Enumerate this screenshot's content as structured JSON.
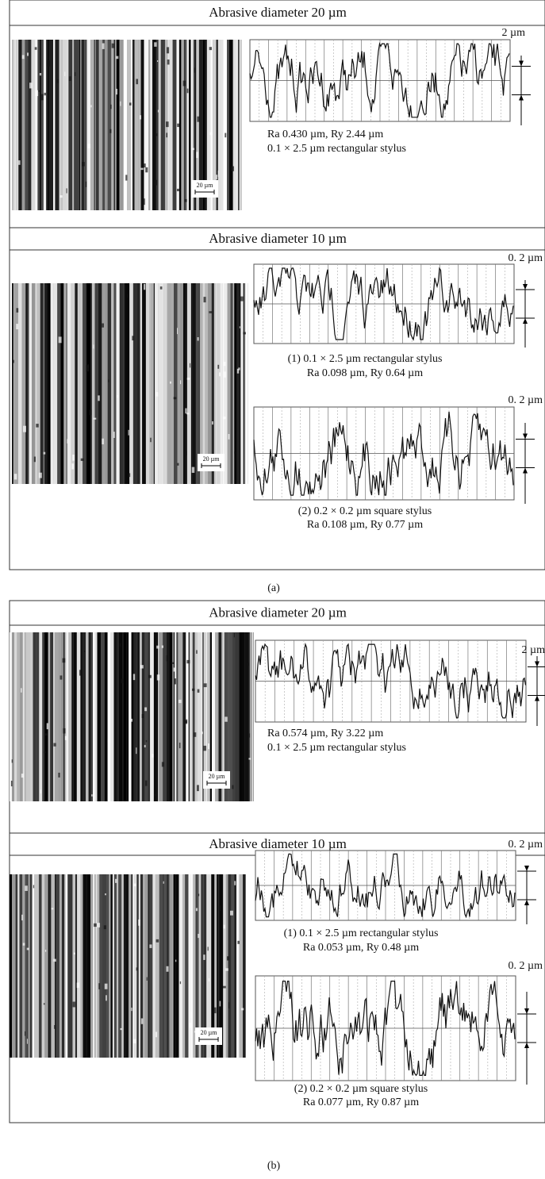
{
  "panels": [
    {
      "label": "(a)",
      "sections": [
        {
          "header": "Abrasive diameter   20 µm",
          "scale_bar": "20 µm",
          "profiles": [
            {
              "scale": "2 µm",
              "lines": [
                "Ra 0.430 µm, Ry 2.44 µm",
                "0.1 × 2.5 µm rectangular stylus"
              ]
            }
          ]
        },
        {
          "header": "Abrasive diameter   10 µm",
          "scale_bar": "20 µm",
          "profiles": [
            {
              "scale": "0. 2 µm",
              "lines": [
                "(1)  0.1 × 2.5 µm rectangular stylus",
                "Ra 0.098 µm, Ry 0.64 µm"
              ]
            },
            {
              "scale": "0. 2 µm",
              "lines": [
                "(2)  0.2 × 0.2 µm square stylus",
                "Ra 0.108 µm, Ry 0.77 µm"
              ]
            }
          ]
        }
      ]
    },
    {
      "label": "(b)",
      "sections": [
        {
          "header": "Abrasive diameter   20 µm",
          "scale_bar": "20 µm",
          "profiles": [
            {
              "scale": "2 µm",
              "lines": [
                "Ra 0.574 µm, Ry 3.22 µm",
                "0.1 × 2.5 µm rectangular stylus"
              ]
            }
          ]
        },
        {
          "header": "Abrasive diameter   10 µm",
          "scale_bar": "20 µm",
          "profiles": [
            {
              "scale": "0. 2 µm",
              "lines": [
                "(1) 0.1 × 2.5 µm rectangular stylus",
                "Ra 0.053 µm, Ry 0.48 µm"
              ]
            },
            {
              "scale": "0. 2 µm",
              "lines": [
                "(2) 0.2 × 0.2 µm square stylus",
                "Ra 0.077 µm, Ry 0.87 µm"
              ]
            }
          ]
        }
      ]
    }
  ]
}
